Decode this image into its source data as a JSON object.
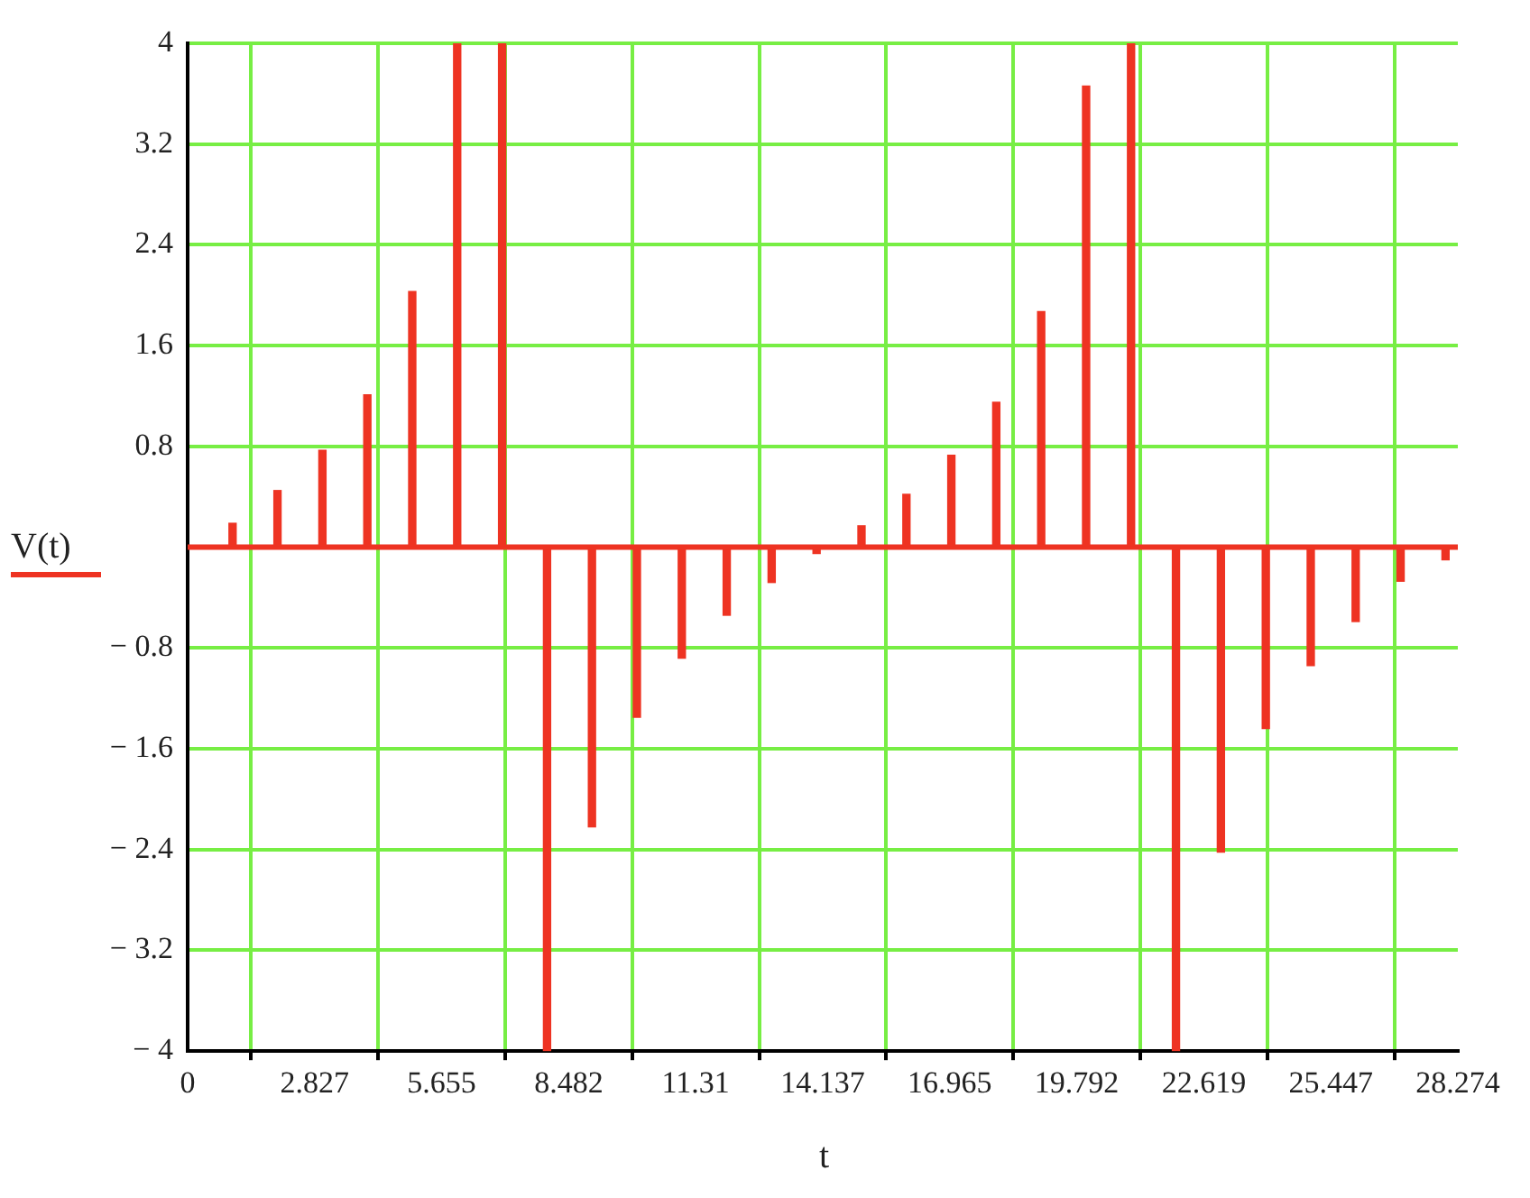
{
  "chart_data": {
    "type": "bar",
    "xlabel": "t",
    "ylabel": "V(t)",
    "x": [
      1,
      2,
      3,
      4,
      5,
      6,
      7,
      8,
      9,
      10,
      11,
      12,
      13,
      14,
      15,
      16,
      17,
      18,
      19,
      20,
      21,
      22,
      23,
      24,
      25,
      26,
      27,
      28
    ],
    "series": [
      {
        "color": "#ee3322",
        "values": [
          0.19,
          0.45,
          0.77,
          1.21,
          2.03,
          4,
          4,
          -4,
          -2.22,
          -1.35,
          -0.88,
          -0.54,
          -0.28,
          -0.05,
          0.17,
          0.42,
          0.73,
          1.15,
          1.87,
          3.66,
          4,
          -4,
          -2.42,
          -1.44,
          -0.94,
          -0.59,
          -0.27,
          -0.1
        ]
      }
    ],
    "xlim": [
      0,
      28.274
    ],
    "xticks": [
      0,
      2.827,
      5.655,
      8.482,
      11.31,
      14.137,
      16.965,
      19.792,
      22.619,
      25.447,
      28.274
    ],
    "ylim": [
      -4,
      4
    ],
    "yticks": [
      4,
      3.2,
      2.4,
      1.6,
      0.8,
      {
        "value": 0,
        "label": null
      },
      {
        "value": -0.8,
        "label": "− 0.8"
      },
      {
        "value": -1.6,
        "label": "− 1.6"
      },
      {
        "value": -2.4,
        "label": "− 2.4"
      },
      {
        "value": -3.2,
        "label": "− 3.2"
      },
      {
        "value": -4,
        "label": "− 4"
      }
    ],
    "ref_lines": [
      {
        "axis": "y",
        "value": 0,
        "color": "#ee3322"
      }
    ],
    "grid": true
  }
}
